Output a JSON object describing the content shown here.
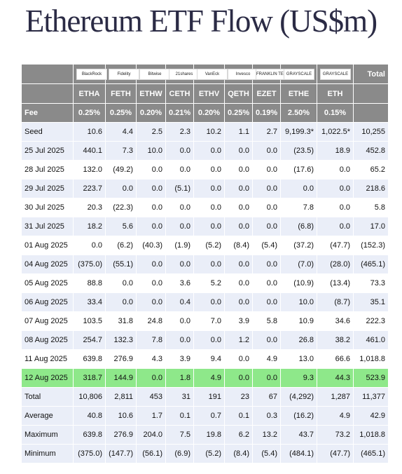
{
  "title": "Ethereum ETF Flow (US$m)",
  "colors": {
    "header_bg": "#8a8a8a",
    "row_alt": "#eaeef8",
    "highlight": "#8ee88a",
    "negative": "#d01818"
  },
  "header": {
    "logos": [
      "BlackRock",
      "Fidelity",
      "Bitwise",
      "21shares",
      "VanEck",
      "Invesco",
      "FRANKLIN TEMPLETON",
      "GRAYSCALE",
      "GRAYSCALE"
    ],
    "total_label": "Total",
    "tickers": [
      "ETHA",
      "FETH",
      "ETHW",
      "CETH",
      "ETHV",
      "QETH",
      "EZET",
      "ETHE",
      "ETH"
    ],
    "fee_label": "Fee",
    "fees": [
      "0.25%",
      "0.25%",
      "0.20%",
      "0.21%",
      "0.20%",
      "0.25%",
      "0.19%",
      "2.50%",
      "0.15%"
    ]
  },
  "rows": [
    {
      "label": "Seed",
      "values": [
        "10.6",
        "4.4",
        "2.5",
        "2.3",
        "10.2",
        "1.1",
        "2.7",
        "9,199.3*",
        "1,022.5*",
        "10,255"
      ]
    },
    {
      "label": "25 Jul 2025",
      "values": [
        "440.1",
        "7.3",
        "10.0",
        "0.0",
        "0.0",
        "0.0",
        "0.0",
        "(23.5)",
        "18.9",
        "452.8"
      ]
    },
    {
      "label": "28 Jul 2025",
      "values": [
        "132.0",
        "(49.2)",
        "0.0",
        "0.0",
        "0.0",
        "0.0",
        "0.0",
        "(17.6)",
        "0.0",
        "65.2"
      ]
    },
    {
      "label": "29 Jul 2025",
      "values": [
        "223.7",
        "0.0",
        "0.0",
        "(5.1)",
        "0.0",
        "0.0",
        "0.0",
        "0.0",
        "0.0",
        "218.6"
      ]
    },
    {
      "label": "30 Jul 2025",
      "values": [
        "20.3",
        "(22.3)",
        "0.0",
        "0.0",
        "0.0",
        "0.0",
        "0.0",
        "7.8",
        "0.0",
        "5.8"
      ]
    },
    {
      "label": "31 Jul 2025",
      "values": [
        "18.2",
        "5.6",
        "0.0",
        "0.0",
        "0.0",
        "0.0",
        "0.0",
        "(6.8)",
        "0.0",
        "17.0"
      ]
    },
    {
      "label": "01 Aug 2025",
      "values": [
        "0.0",
        "(6.2)",
        "(40.3)",
        "(1.9)",
        "(5.2)",
        "(8.4)",
        "(5.4)",
        "(37.2)",
        "(47.7)",
        "(152.3)"
      ]
    },
    {
      "label": "04 Aug 2025",
      "values": [
        "(375.0)",
        "(55.1)",
        "0.0",
        "0.0",
        "0.0",
        "0.0",
        "0.0",
        "(7.0)",
        "(28.0)",
        "(465.1)"
      ]
    },
    {
      "label": "05 Aug 2025",
      "values": [
        "88.8",
        "0.0",
        "0.0",
        "3.6",
        "5.2",
        "0.0",
        "0.0",
        "(10.9)",
        "(13.4)",
        "73.3"
      ]
    },
    {
      "label": "06 Aug 2025",
      "values": [
        "33.4",
        "0.0",
        "0.0",
        "0.4",
        "0.0",
        "0.0",
        "0.0",
        "10.0",
        "(8.7)",
        "35.1"
      ]
    },
    {
      "label": "07 Aug 2025",
      "values": [
        "103.5",
        "31.8",
        "24.8",
        "0.0",
        "7.0",
        "3.9",
        "5.8",
        "10.9",
        "34.6",
        "222.3"
      ]
    },
    {
      "label": "08 Aug 2025",
      "values": [
        "254.7",
        "132.3",
        "7.8",
        "0.0",
        "0.0",
        "1.2",
        "0.0",
        "26.8",
        "38.2",
        "461.0"
      ]
    },
    {
      "label": "11 Aug 2025",
      "values": [
        "639.8",
        "276.9",
        "4.3",
        "3.9",
        "9.4",
        "0.0",
        "4.9",
        "13.0",
        "66.6",
        "1,018.8"
      ]
    },
    {
      "label": "12 Aug 2025",
      "values": [
        "318.7",
        "144.9",
        "0.0",
        "1.8",
        "4.9",
        "0.0",
        "0.0",
        "9.3",
        "44.3",
        "523.9"
      ],
      "highlight": true
    }
  ],
  "summary": [
    {
      "label": "Total",
      "values": [
        "10,806",
        "2,811",
        "453",
        "31",
        "191",
        "23",
        "67",
        "(4,292)",
        "1,287",
        "11,377"
      ]
    },
    {
      "label": "Average",
      "values": [
        "40.8",
        "10.6",
        "1.7",
        "0.1",
        "0.7",
        "0.1",
        "0.3",
        "(16.2)",
        "4.9",
        "42.9"
      ]
    },
    {
      "label": "Maximum",
      "values": [
        "639.8",
        "276.9",
        "204.0",
        "7.5",
        "19.8",
        "6.2",
        "13.2",
        "43.7",
        "73.2",
        "1,018.8"
      ]
    },
    {
      "label": "Minimum",
      "values": [
        "(375.0)",
        "(147.7)",
        "(56.1)",
        "(6.9)",
        "(5.2)",
        "(8.4)",
        "(5.4)",
        "(484.1)",
        "(47.7)",
        "(465.1)"
      ]
    }
  ]
}
